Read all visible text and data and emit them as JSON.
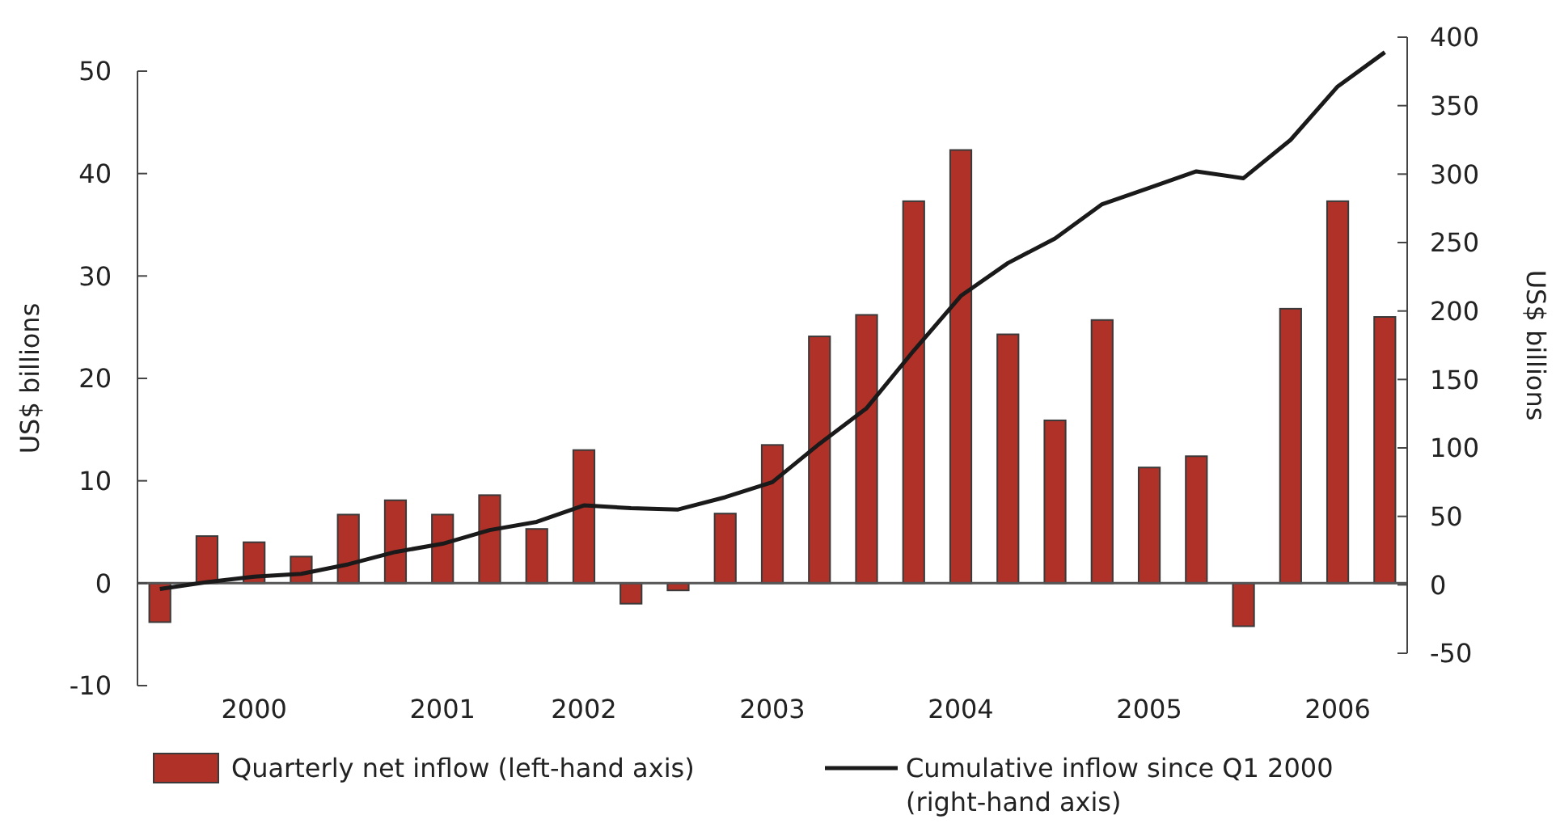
{
  "chart_data": {
    "type": "bar",
    "categories": [
      null,
      null,
      "2000",
      null,
      null,
      null,
      "2001",
      null,
      null,
      "2002",
      null,
      null,
      null,
      "2003",
      null,
      null,
      null,
      "2004",
      null,
      null,
      null,
      "2005",
      null,
      null,
      null,
      "2006",
      null
    ],
    "series": [
      {
        "name": "Quarterly net inflow (left-hand axis)",
        "color": "#b03128",
        "values": [
          -3.8,
          4.6,
          4.0,
          2.6,
          6.7,
          8.1,
          6.7,
          8.6,
          5.3,
          13.0,
          -2.0,
          -0.7,
          6.8,
          13.5,
          24.1,
          26.2,
          37.3,
          42.3,
          24.3,
          15.9,
          25.7,
          11.3,
          12.4,
          -4.2,
          26.8,
          37.3,
          26.0
        ]
      },
      {
        "name": "Cumulative inflow since Q1 2000\n(right-hand axis)",
        "type": "line",
        "axis": "y2",
        "color": "#1a1a1a",
        "values": [
          -3,
          2,
          6,
          8,
          15,
          24,
          30,
          40,
          46,
          58,
          56,
          55,
          64,
          75,
          103,
          129,
          171,
          211,
          235,
          253,
          278,
          290,
          302,
          297,
          325,
          364,
          389
        ]
      }
    ],
    "ylabel": "US$ billions",
    "y2label": "US$ billions",
    "ylim": [
      -10,
      50
    ],
    "yticks": [
      -10,
      0,
      10,
      20,
      30,
      40,
      50
    ],
    "y2lim": [
      -50,
      400
    ],
    "y2ticks": [
      -50,
      0,
      50,
      100,
      150,
      200,
      250,
      300,
      350,
      400
    ],
    "legend": "bottom"
  }
}
